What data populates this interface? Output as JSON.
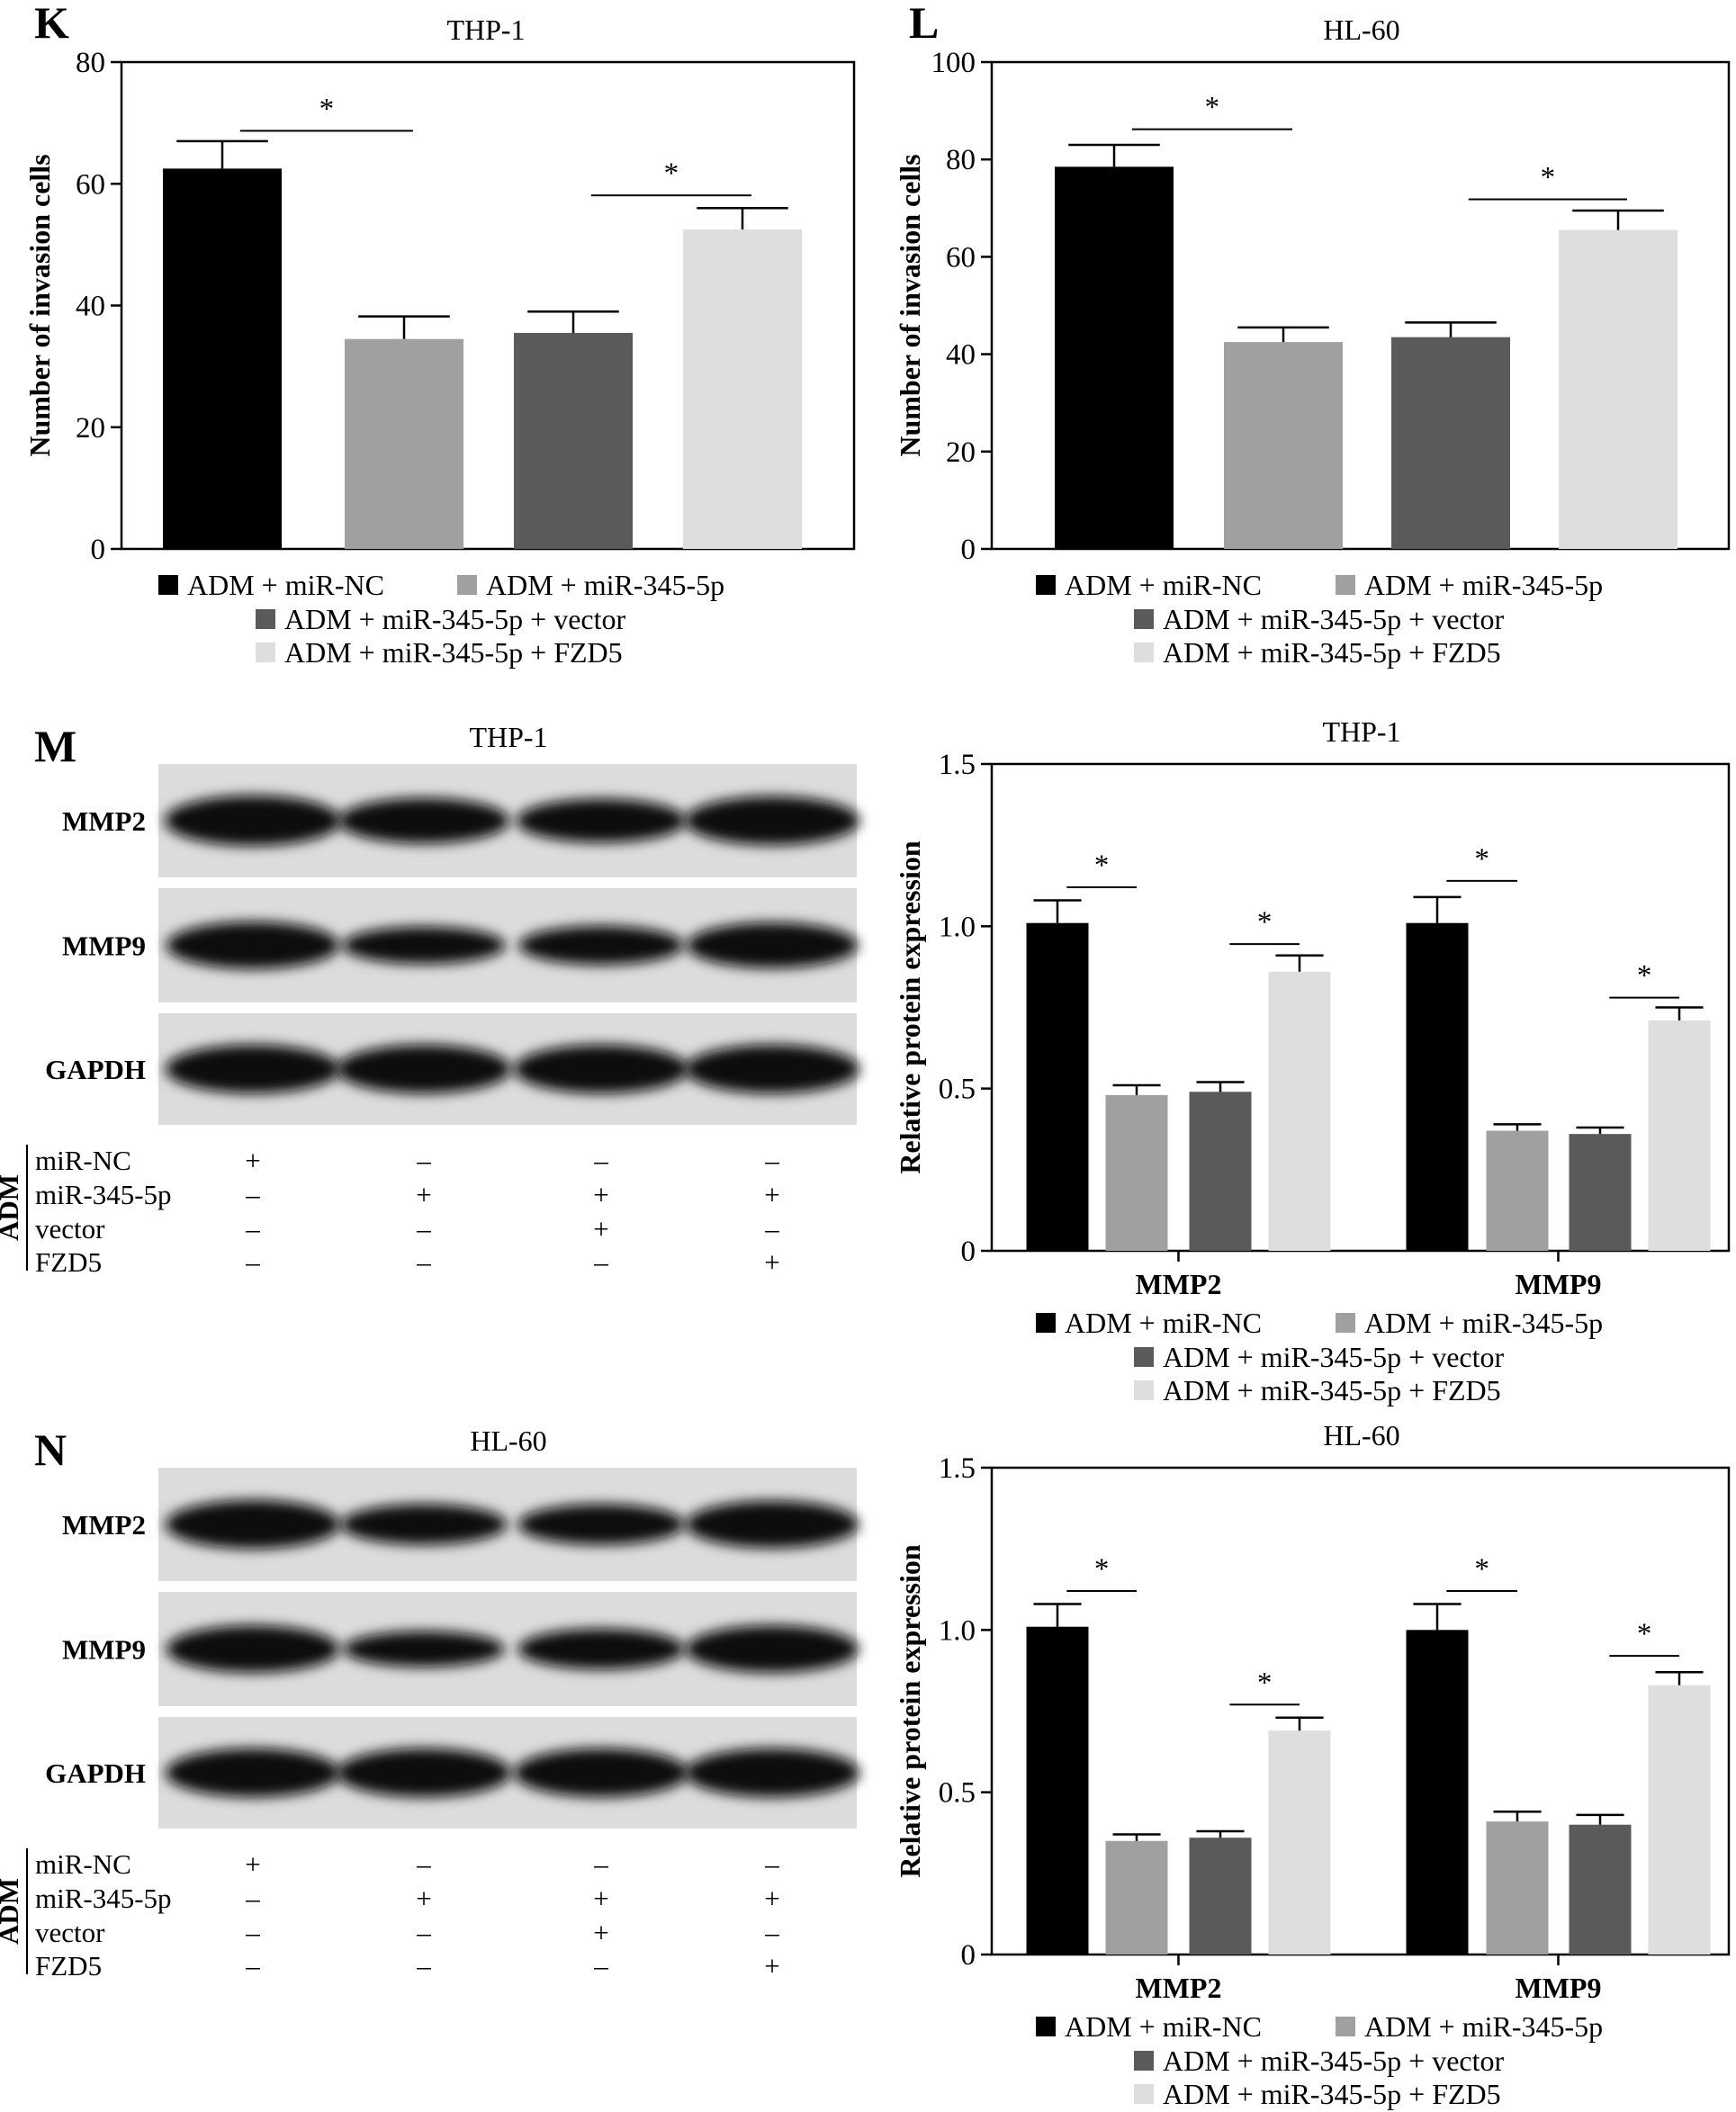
{
  "colors": {
    "ADM + miR-NC": "#000000",
    "ADM + miR-345-5p": "#a0a0a0",
    "ADM + miR-345-5p + vector": "#5a5a5a",
    "ADM + miR-345-5p + FZD5": "#dedede"
  },
  "legend": [
    "ADM + miR-NC",
    "ADM + miR-345-5p",
    "ADM + miR-345-5p + vector",
    "ADM + miR-345-5p + FZD5"
  ],
  "chart_data": [
    {
      "panel": "K",
      "type": "bar",
      "title": "THP-1",
      "ylabel": "Number of invasion cells",
      "ylim": [
        0,
        80
      ],
      "yticks": [
        0,
        20,
        40,
        60,
        80
      ],
      "categories": [
        ""
      ],
      "series": [
        {
          "name": "ADM + miR-NC",
          "values": [
            62.5
          ],
          "err": [
            4.5
          ]
        },
        {
          "name": "ADM + miR-345-5p",
          "values": [
            34.5
          ],
          "err": [
            3.7
          ]
        },
        {
          "name": "ADM + miR-345-5p + vector",
          "values": [
            35.5
          ],
          "err": [
            3.5
          ]
        },
        {
          "name": "ADM + miR-345-5p + FZD5",
          "values": [
            52.5
          ],
          "err": [
            3.5
          ]
        }
      ],
      "significance": [
        {
          "cat": 0,
          "from": 0,
          "to": 1,
          "y": 68.7,
          "label": "*"
        },
        {
          "cat": 0,
          "from": 2,
          "to": 3,
          "y": 58.1,
          "label": "*"
        }
      ]
    },
    {
      "panel": "L",
      "type": "bar",
      "title": "HL-60",
      "ylabel": "Number of invasion cells",
      "ylim": [
        0,
        100
      ],
      "yticks": [
        0,
        20,
        40,
        60,
        80,
        100
      ],
      "categories": [
        ""
      ],
      "series": [
        {
          "name": "ADM + miR-NC",
          "values": [
            78.5
          ],
          "err": [
            4.5
          ]
        },
        {
          "name": "ADM + miR-345-5p",
          "values": [
            42.5
          ],
          "err": [
            3
          ]
        },
        {
          "name": "ADM + miR-345-5p + vector",
          "values": [
            43.5
          ],
          "err": [
            3
          ]
        },
        {
          "name": "ADM + miR-345-5p + FZD5",
          "values": [
            65.5
          ],
          "err": [
            4
          ]
        }
      ],
      "significance": [
        {
          "cat": 0,
          "from": 0,
          "to": 1,
          "y": 86.2,
          "label": "*"
        },
        {
          "cat": 0,
          "from": 2,
          "to": 3,
          "y": 71.8,
          "label": "*"
        }
      ]
    },
    {
      "panel": "M",
      "type": "bar",
      "title": "THP-1",
      "ylabel": "Relative protein expression",
      "ylim": [
        0,
        1.5
      ],
      "yticks": [
        0,
        0.5,
        1.0,
        1.5
      ],
      "ytick_labels": [
        "0",
        "0.5",
        "1.0",
        "1.5"
      ],
      "categories": [
        "MMP2",
        "MMP9"
      ],
      "series": [
        {
          "name": "ADM + miR-NC",
          "values": [
            1.01,
            1.01
          ],
          "err": [
            0.07,
            0.08
          ]
        },
        {
          "name": "ADM + miR-345-5p",
          "values": [
            0.48,
            0.37
          ],
          "err": [
            0.03,
            0.02
          ]
        },
        {
          "name": "ADM + miR-345-5p + vector",
          "values": [
            0.49,
            0.36
          ],
          "err": [
            0.03,
            0.02
          ]
        },
        {
          "name": "ADM + miR-345-5p + FZD5",
          "values": [
            0.86,
            0.71
          ],
          "err": [
            0.05,
            0.04
          ]
        }
      ],
      "significance": [
        {
          "cat": 0,
          "from": 0,
          "to": 1,
          "y": 1.12,
          "label": "*"
        },
        {
          "cat": 0,
          "from": 2,
          "to": 3,
          "y": 0.945,
          "label": "*"
        },
        {
          "cat": 1,
          "from": 0,
          "to": 1,
          "y": 1.14,
          "label": "*"
        },
        {
          "cat": 1,
          "from": 2,
          "to": 3,
          "y": 0.78,
          "label": "*"
        }
      ]
    },
    {
      "panel": "N",
      "type": "bar",
      "title": "HL-60",
      "ylabel": "Relative protein expression",
      "ylim": [
        0,
        1.5
      ],
      "yticks": [
        0,
        0.5,
        1.0,
        1.5
      ],
      "ytick_labels": [
        "0",
        "0.5",
        "1.0",
        "1.5"
      ],
      "categories": [
        "MMP2",
        "MMP9"
      ],
      "series": [
        {
          "name": "ADM + miR-NC",
          "values": [
            1.01,
            1.0
          ],
          "err": [
            0.07,
            0.08
          ]
        },
        {
          "name": "ADM + miR-345-5p",
          "values": [
            0.35,
            0.41
          ],
          "err": [
            0.02,
            0.03
          ]
        },
        {
          "name": "ADM + miR-345-5p + vector",
          "values": [
            0.36,
            0.4
          ],
          "err": [
            0.02,
            0.03
          ]
        },
        {
          "name": "ADM + miR-345-5p + FZD5",
          "values": [
            0.69,
            0.83
          ],
          "err": [
            0.04,
            0.04
          ]
        }
      ],
      "significance": [
        {
          "cat": 0,
          "from": 0,
          "to": 1,
          "y": 1.12,
          "label": "*"
        },
        {
          "cat": 0,
          "from": 2,
          "to": 3,
          "y": 0.77,
          "label": "*"
        },
        {
          "cat": 1,
          "from": 0,
          "to": 1,
          "y": 1.12,
          "label": "*"
        },
        {
          "cat": 1,
          "from": 2,
          "to": 3,
          "y": 0.92,
          "label": "*"
        }
      ]
    }
  ],
  "blots": [
    {
      "panel": "M",
      "title": "THP-1",
      "bands": [
        {
          "label": "MMP2",
          "intensity": [
            1.0,
            0.85,
            0.8,
            0.95
          ]
        },
        {
          "label": "MMP9",
          "intensity": [
            0.9,
            0.6,
            0.65,
            0.85
          ]
        },
        {
          "label": "GAPDH",
          "intensity": [
            0.95,
            0.95,
            0.95,
            0.95
          ]
        }
      ]
    },
    {
      "panel": "N",
      "title": "HL-60",
      "bands": [
        {
          "label": "MMP2",
          "intensity": [
            0.95,
            0.7,
            0.7,
            0.9
          ]
        },
        {
          "label": "MMP9",
          "intensity": [
            0.9,
            0.55,
            0.7,
            0.9
          ]
        },
        {
          "label": "GAPDH",
          "intensity": [
            0.95,
            0.95,
            0.95,
            0.95
          ]
        }
      ]
    }
  ],
  "treatment_table": {
    "group": "ADM",
    "rows": [
      {
        "label": "miR-NC",
        "marks": [
          "+",
          "–",
          "–",
          "–"
        ]
      },
      {
        "label": "miR-345-5p",
        "marks": [
          "–",
          "+",
          "+",
          "+"
        ]
      },
      {
        "label": "vector",
        "marks": [
          "–",
          "–",
          "+",
          "–"
        ]
      },
      {
        "label": "FZD5",
        "marks": [
          "–",
          "–",
          "–",
          "+"
        ]
      }
    ]
  }
}
